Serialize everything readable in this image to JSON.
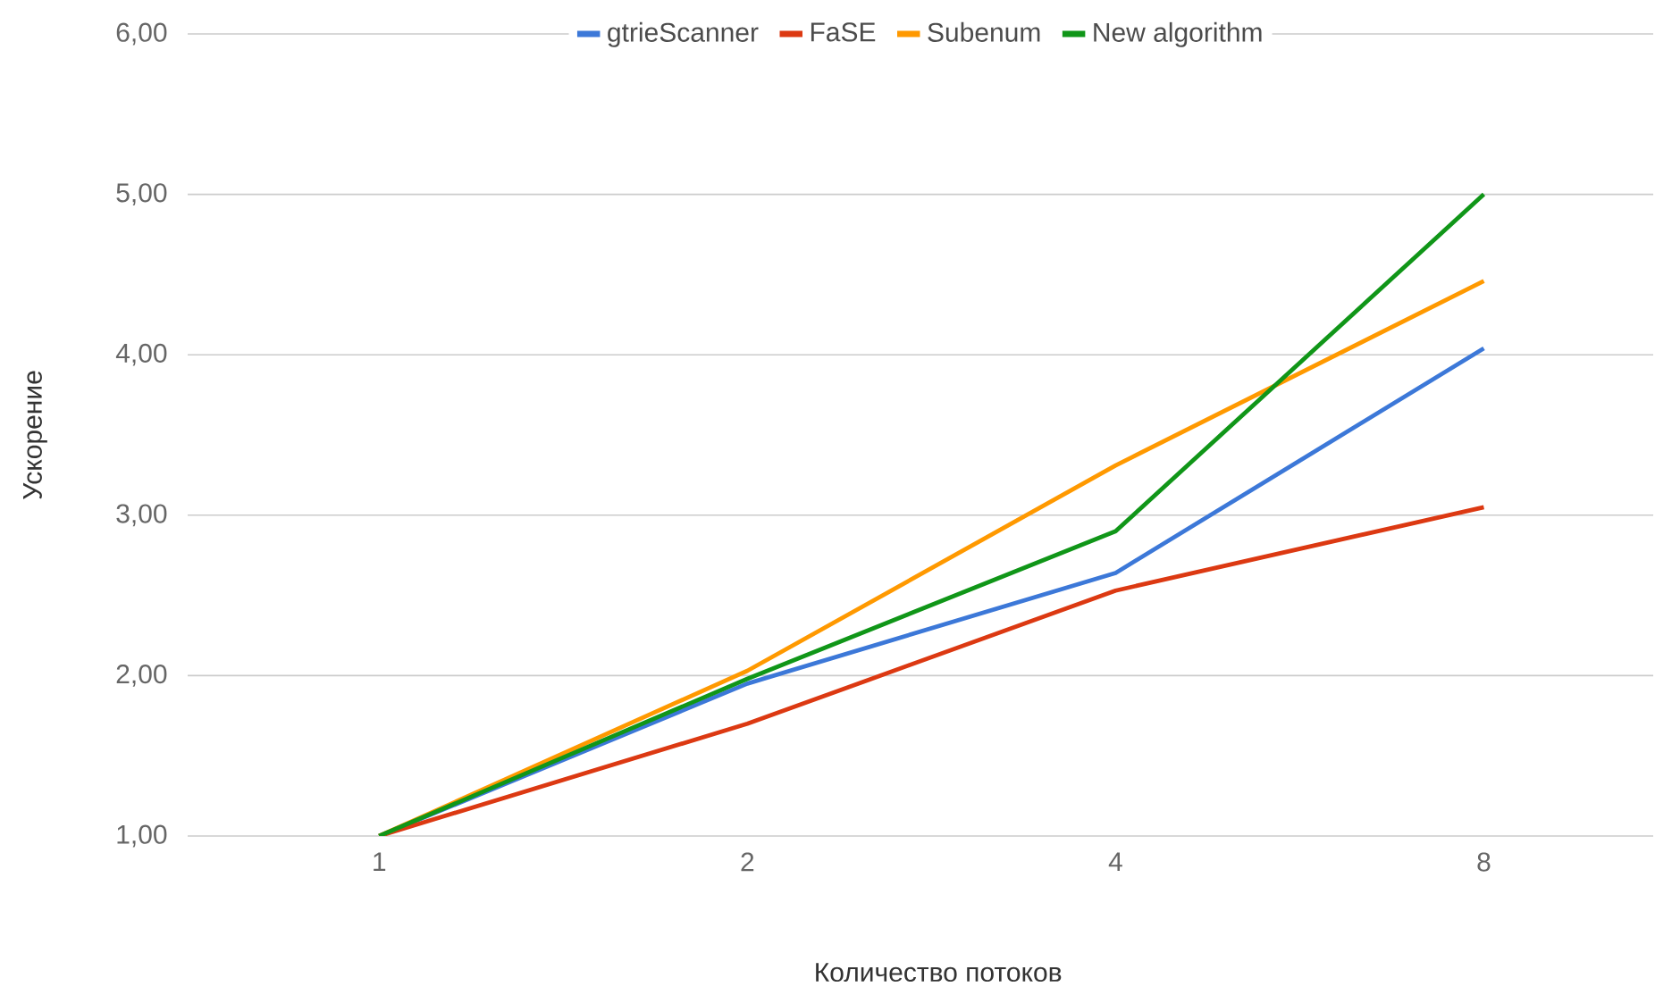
{
  "chart_data": {
    "type": "line",
    "xlabel": "Количество потоков",
    "ylabel": "Ускорение",
    "categories": [
      "1",
      "2",
      "4",
      "8"
    ],
    "series": [
      {
        "name": "gtrieScanner",
        "color": "#3c78d8",
        "values": [
          1.0,
          1.95,
          2.64,
          4.04
        ]
      },
      {
        "name": "FaSE",
        "color": "#dc3912",
        "values": [
          1.0,
          1.7,
          2.53,
          3.05
        ]
      },
      {
        "name": "Subenum",
        "color": "#ff9900",
        "values": [
          1.0,
          2.03,
          3.31,
          4.46
        ]
      },
      {
        "name": "New algorithm",
        "color": "#109618",
        "values": [
          1.0,
          1.98,
          2.9,
          5.0
        ]
      }
    ],
    "ylim": [
      1,
      6
    ],
    "yticks": [
      {
        "value": 1,
        "label": "1,00"
      },
      {
        "value": 2,
        "label": "2,00"
      },
      {
        "value": 3,
        "label": "3,00"
      },
      {
        "value": 4,
        "label": "4,00"
      },
      {
        "value": 5,
        "label": "5,00"
      },
      {
        "value": 6,
        "label": "6,00"
      }
    ],
    "grid": "y",
    "legend": "top"
  }
}
